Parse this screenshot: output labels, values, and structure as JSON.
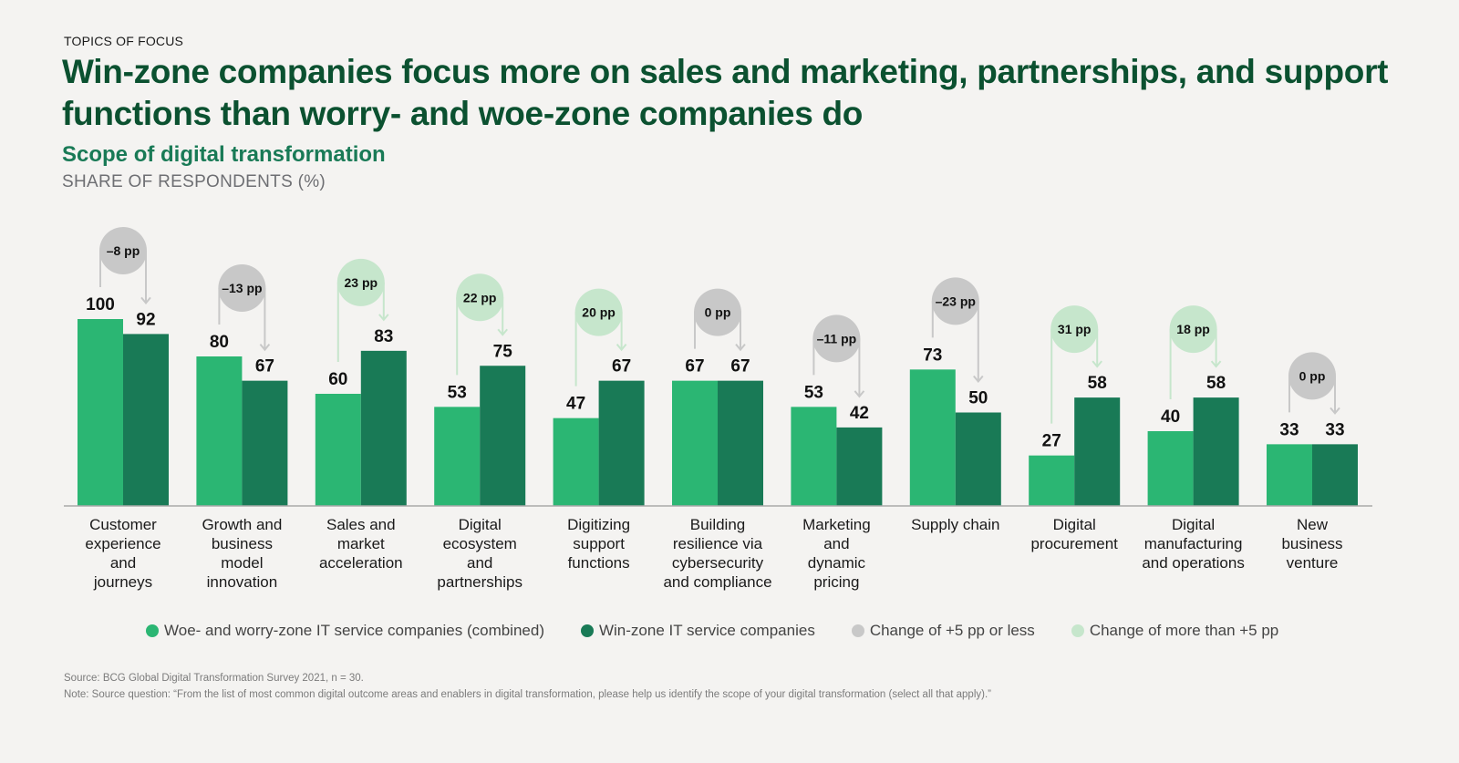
{
  "header": {
    "kicker": "TOPICS OF FOCUS",
    "title": "Win-zone companies focus more on sales and marketing, partnerships, and support functions than worry- and woe-zone companies do",
    "subtitle": "Scope of digital transformation",
    "unit": "SHARE OF RESPONDENTS (%)"
  },
  "colors": {
    "woe_worry": "#2bb673",
    "win": "#197a56",
    "small_change": "#c8c8c8",
    "large_change": "#c6e6cc",
    "title": "#0b5130",
    "subtitle": "#197a56"
  },
  "legend": [
    {
      "label": "Woe- and worry-zone IT service companies (combined)",
      "color": "#2bb673"
    },
    {
      "label": "Win-zone IT service companies",
      "color": "#197a56"
    },
    {
      "label": "Change of +5 pp or less",
      "color": "#c8c8c8"
    },
    {
      "label": "Change of more than +5 pp",
      "color": "#c6e6cc"
    }
  ],
  "chart_data": {
    "type": "bar",
    "title": "Scope of digital transformation",
    "ylabel": "SHARE OF RESPONDENTS (%)",
    "xlabel": "",
    "ylim": [
      0,
      100
    ],
    "grid": false,
    "legend_position": "bottom",
    "categories": [
      [
        "Customer",
        "experience",
        "and",
        "journeys"
      ],
      [
        "Growth and",
        "business",
        "model",
        "innovation"
      ],
      [
        "Sales and",
        "market",
        "acceleration"
      ],
      [
        "Digital",
        "ecosystem",
        "and",
        "partnerships"
      ],
      [
        "Digitizing",
        "support",
        "functions"
      ],
      [
        "Building",
        "resilience via",
        "cybersecurity",
        "and compliance"
      ],
      [
        "Marketing",
        "and",
        "dynamic",
        "pricing"
      ],
      [
        "Supply chain"
      ],
      [
        "Digital",
        "procurement"
      ],
      [
        "Digital",
        "manufacturing",
        "and operations"
      ],
      [
        "New",
        "business",
        "venture"
      ]
    ],
    "series": [
      {
        "name": "Woe- and worry-zone IT service companies (combined)",
        "values": [
          100,
          80,
          60,
          53,
          47,
          67,
          53,
          73,
          27,
          40,
          33
        ]
      },
      {
        "name": "Win-zone IT service companies",
        "values": [
          92,
          67,
          83,
          75,
          67,
          67,
          42,
          50,
          58,
          58,
          33
        ]
      }
    ],
    "annotations": {
      "changes": [
        "–8 pp",
        "–13 pp",
        "23 pp",
        "22 pp",
        "20 pp",
        "0 pp",
        "–11 pp",
        "–23 pp",
        "31 pp",
        "18 pp",
        "0 pp"
      ],
      "change_type": [
        "small",
        "small",
        "large",
        "large",
        "large",
        "small",
        "small",
        "small",
        "large",
        "large",
        "small"
      ]
    }
  },
  "footer": {
    "source": "Source: BCG Global Digital Transformation Survey 2021, n = 30.",
    "note": "Note: Source question: “From the list of most common digital outcome areas and enablers in digital transformation, please help us identify the scope of your digital transformation (select all that apply).”"
  }
}
